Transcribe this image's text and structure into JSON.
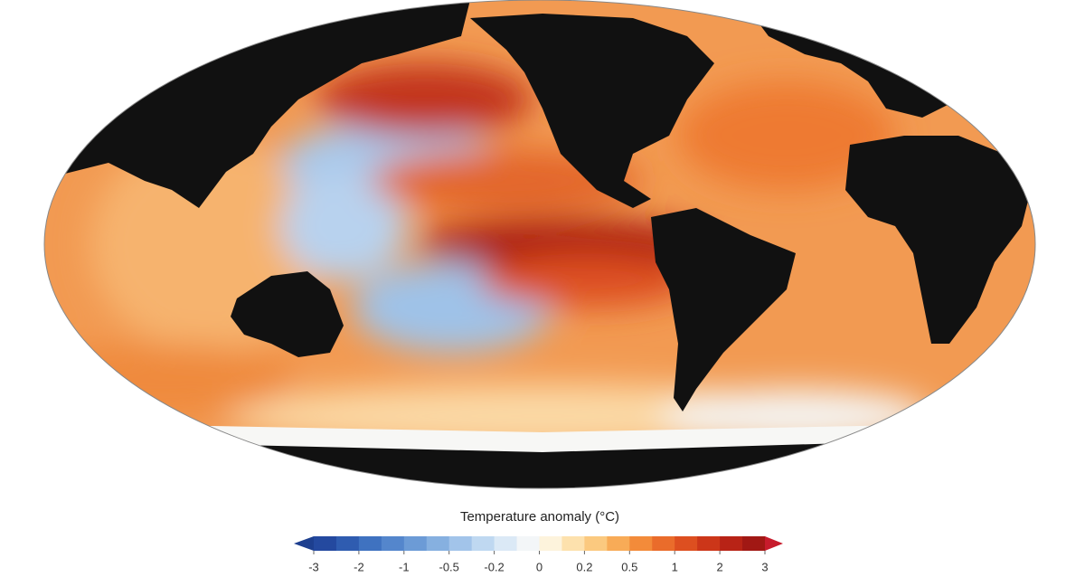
{
  "legend": {
    "title": "Temperature anomaly (°C)",
    "ticks": [
      -3,
      -2,
      -1,
      -0.5,
      -0.2,
      0,
      0.2,
      0.5,
      1,
      2,
      3
    ],
    "colors": [
      "#1d3f8f",
      "#24499f",
      "#2f5cb0",
      "#3f72c0",
      "#5486cc",
      "#6c9bd6",
      "#86b0e0",
      "#a2c4ea",
      "#bfd8f1",
      "#dbe9f6",
      "#f3f6f8",
      "#fdf3dc",
      "#fde1ad",
      "#fbc97f",
      "#f8ab57",
      "#f38b3a",
      "#ea6c2b",
      "#dd4f20",
      "#cc3619",
      "#b82316",
      "#a11814",
      "#c71b2c"
    ]
  }
}
